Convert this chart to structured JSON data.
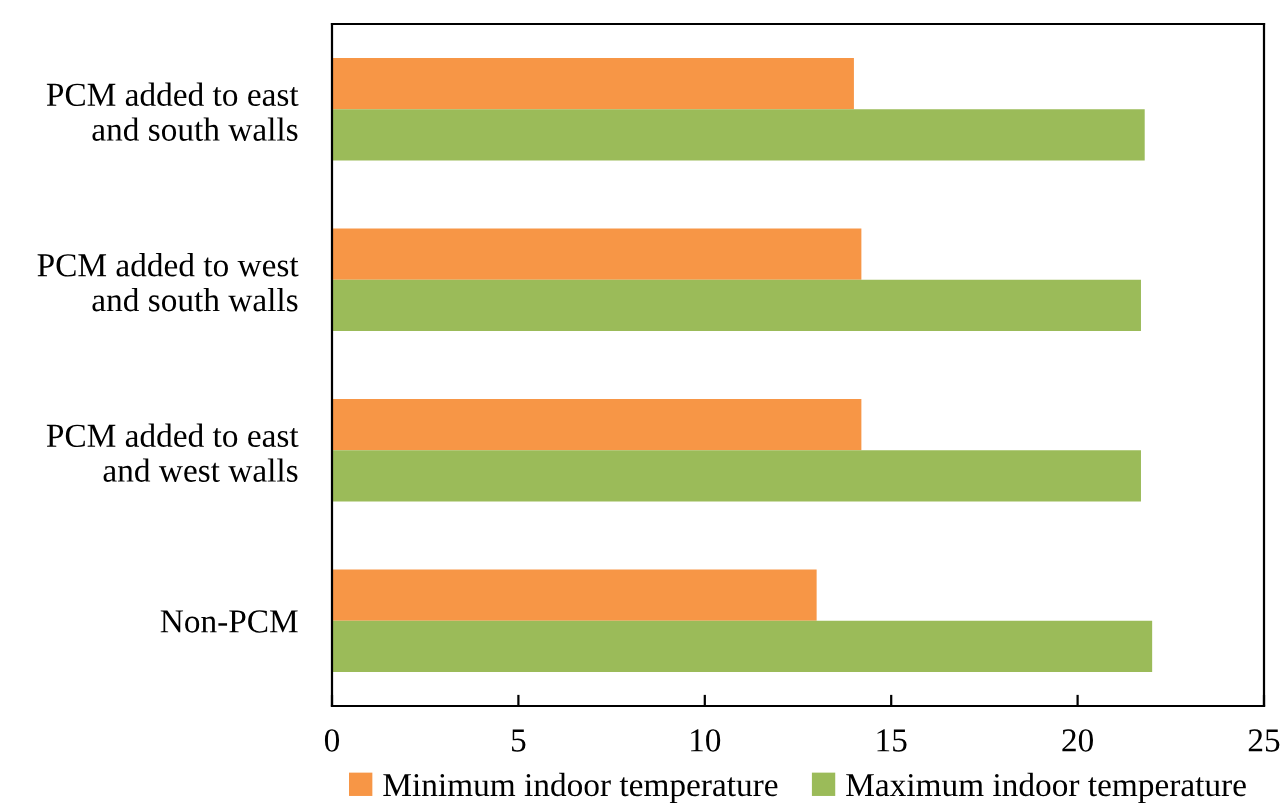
{
  "chart_data": {
    "type": "bar",
    "orientation": "horizontal",
    "categories": [
      "PCM added to east\nand south walls",
      "PCM added to west\nand south walls",
      "PCM added to east\nand west walls",
      "Non-PCM"
    ],
    "series": [
      {
        "name": "Minimum indoor temperature",
        "color": "#f79646",
        "values": [
          14.0,
          14.2,
          14.2,
          13.0
        ]
      },
      {
        "name": "Maximum indoor temperature",
        "color": "#9bbb59",
        "values": [
          21.8,
          21.7,
          21.7,
          22.0
        ]
      }
    ],
    "xlim": [
      0,
      25
    ],
    "xticks": [
      0,
      5,
      10,
      15,
      20,
      25
    ],
    "grid": false,
    "legend": "bottom"
  }
}
